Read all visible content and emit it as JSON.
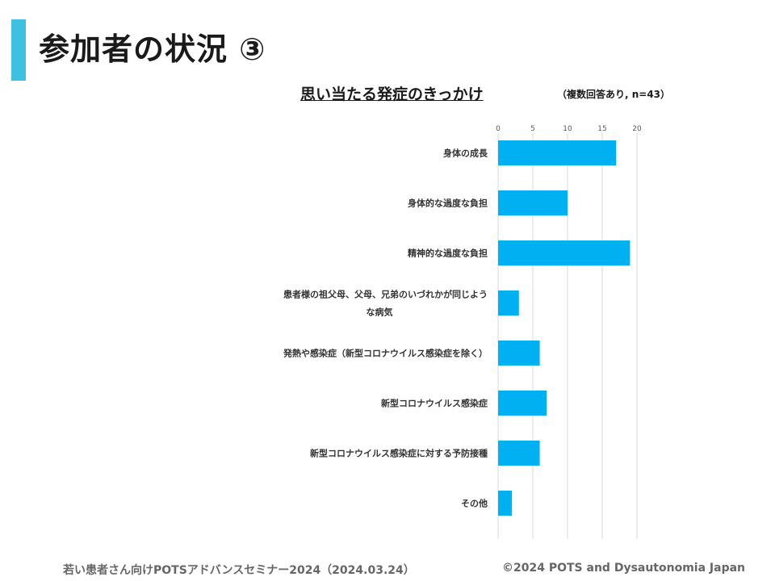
{
  "slide": {
    "title": "参加者の状況 ③",
    "footer_left": "若い患者さん向けPOTSアドバンスセミナー2024（2024.03.24）",
    "footer_right": "©2024 POTS and Dysautonomia Japan",
    "accent_color": "#3ec1e0"
  },
  "chart_data": {
    "type": "bar",
    "orientation": "horizontal",
    "title": "思い当たる発症のきっかけ",
    "subtitle": "（複数回答あり, n=43）",
    "categories": [
      [
        "身体の成長"
      ],
      [
        "身体的な過度な負担"
      ],
      [
        "精神的な過度な負担"
      ],
      [
        "患者様の祖父母、父母、兄弟のいづれかが同じよう",
        "な病気"
      ],
      [
        "発熱や感染症（新型コロナウイルス感染症を除く）"
      ],
      [
        "新型コロナウイルス感染症"
      ],
      [
        "新型コロナウイルス感染症に対する予防接種"
      ],
      [
        "その他"
      ]
    ],
    "values": [
      17,
      10,
      19,
      3,
      6,
      7,
      6,
      2
    ],
    "xlim": [
      0,
      20
    ],
    "xticks": [
      "0",
      "5",
      "10",
      "15",
      "20"
    ],
    "tick_values": [
      0,
      5,
      10,
      15,
      20
    ],
    "bar_color": "#00b0f0",
    "grid_color": "#d9d9d9",
    "grid": true,
    "legend": "none"
  }
}
